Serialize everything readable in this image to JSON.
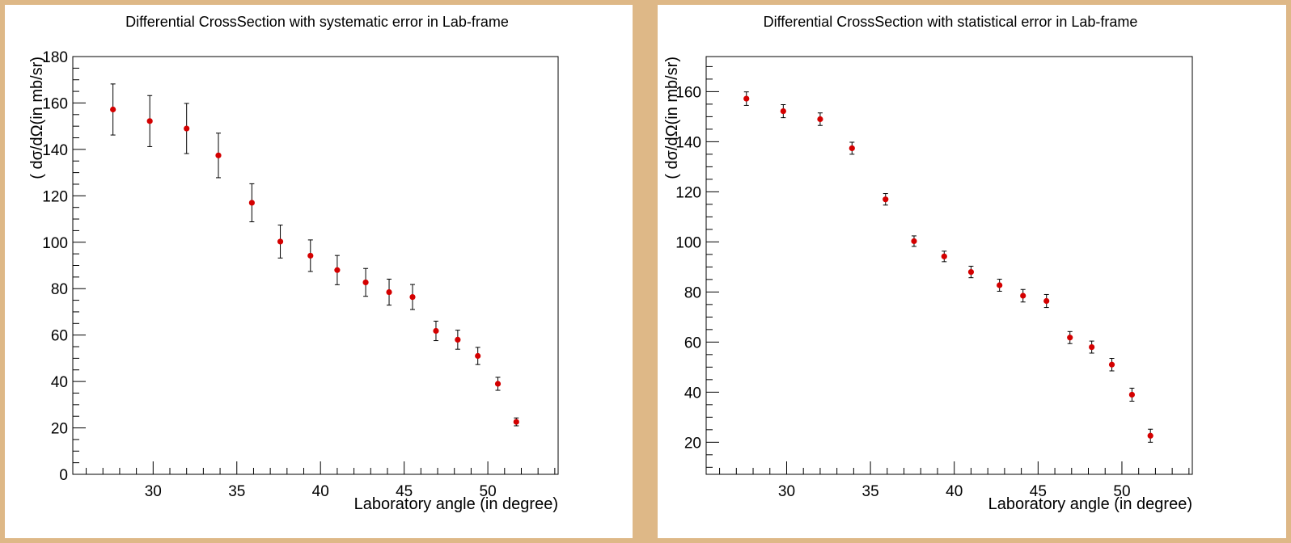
{
  "colors": {
    "background": "#deb887",
    "panel": "#ffffff",
    "marker": "#d40000",
    "axis": "#000000"
  },
  "chart_data": [
    {
      "type": "scatter",
      "title": "Differential CrossSection with systematic error in Lab-frame",
      "xlabel": "Laboratory angle (in degree)",
      "ylabel": "( dσ/dΩ(in mb/sr)",
      "xlim": [
        25.2,
        54.2
      ],
      "ylim": [
        0,
        180
      ],
      "x_ticks": [
        30,
        35,
        40,
        45,
        50
      ],
      "y_ticks": [
        0,
        20,
        40,
        60,
        80,
        100,
        120,
        140,
        160,
        180
      ],
      "x_tick_labels": [
        "30",
        "35",
        "40",
        "45",
        "50"
      ],
      "y_tick_labels": [
        "0",
        "20",
        "40",
        "60",
        "80",
        "100",
        "120",
        "140",
        "160",
        "180"
      ],
      "grid": false,
      "points": [
        {
          "x": 27.6,
          "y": 157.2,
          "err": 11.0
        },
        {
          "x": 29.8,
          "y": 152.2,
          "err": 11.0
        },
        {
          "x": 32.0,
          "y": 149.0,
          "err": 10.8
        },
        {
          "x": 33.9,
          "y": 137.4,
          "err": 9.6
        },
        {
          "x": 35.9,
          "y": 117.0,
          "err": 8.2
        },
        {
          "x": 37.6,
          "y": 100.3,
          "err": 7.1
        },
        {
          "x": 39.4,
          "y": 94.2,
          "err": 6.8
        },
        {
          "x": 41.0,
          "y": 88.0,
          "err": 6.3
        },
        {
          "x": 42.7,
          "y": 82.7,
          "err": 6.0
        },
        {
          "x": 44.1,
          "y": 78.5,
          "err": 5.6
        },
        {
          "x": 45.5,
          "y": 76.4,
          "err": 5.4
        },
        {
          "x": 46.9,
          "y": 61.8,
          "err": 4.2
        },
        {
          "x": 48.2,
          "y": 58.0,
          "err": 4.1
        },
        {
          "x": 49.4,
          "y": 51.0,
          "err": 3.7
        },
        {
          "x": 50.6,
          "y": 39.0,
          "err": 2.8
        },
        {
          "x": 51.7,
          "y": 22.6,
          "err": 1.7
        }
      ]
    },
    {
      "type": "scatter",
      "title": "Differential CrossSection with statistical error in Lab-frame",
      "xlabel": "Laboratory angle (in degree)",
      "ylabel": "( dσ/dΩ(in mb/sr)",
      "xlim": [
        25.2,
        54.2
      ],
      "ylim": [
        7.2,
        174.0
      ],
      "x_ticks": [
        30,
        35,
        40,
        45,
        50
      ],
      "y_ticks": [
        20,
        40,
        60,
        80,
        100,
        120,
        140,
        160
      ],
      "x_tick_labels": [
        "30",
        "35",
        "40",
        "45",
        "50"
      ],
      "y_tick_labels": [
        "20",
        "40",
        "60",
        "80",
        "100",
        "120",
        "140",
        "160"
      ],
      "grid": false,
      "points": [
        {
          "x": 27.6,
          "y": 157.2,
          "err": 2.7
        },
        {
          "x": 29.8,
          "y": 152.2,
          "err": 2.6
        },
        {
          "x": 32.0,
          "y": 149.0,
          "err": 2.5
        },
        {
          "x": 33.9,
          "y": 137.4,
          "err": 2.4
        },
        {
          "x": 35.9,
          "y": 117.0,
          "err": 2.3
        },
        {
          "x": 37.6,
          "y": 100.3,
          "err": 2.1
        },
        {
          "x": 39.4,
          "y": 94.2,
          "err": 2.1
        },
        {
          "x": 41.0,
          "y": 88.0,
          "err": 2.3
        },
        {
          "x": 42.7,
          "y": 82.7,
          "err": 2.4
        },
        {
          "x": 44.1,
          "y": 78.5,
          "err": 2.5
        },
        {
          "x": 45.5,
          "y": 76.4,
          "err": 2.6
        },
        {
          "x": 46.9,
          "y": 61.8,
          "err": 2.4
        },
        {
          "x": 48.2,
          "y": 58.0,
          "err": 2.4
        },
        {
          "x": 49.4,
          "y": 51.0,
          "err": 2.5
        },
        {
          "x": 50.6,
          "y": 39.0,
          "err": 2.6
        },
        {
          "x": 51.7,
          "y": 22.6,
          "err": 2.6
        }
      ]
    }
  ]
}
